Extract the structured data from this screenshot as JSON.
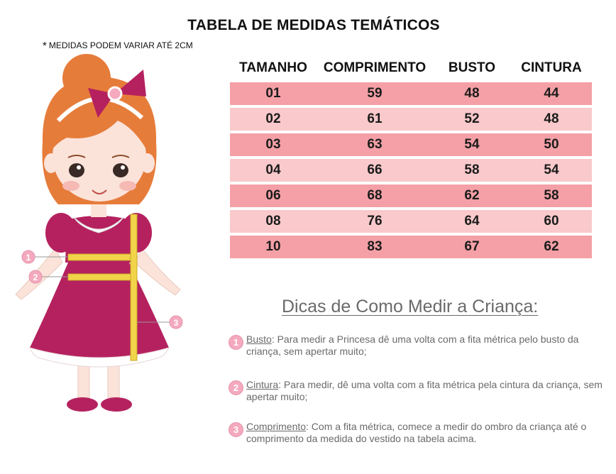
{
  "title": "TABELA DE MEDIDAS TEMÁTICOS",
  "note": {
    "star": "*",
    "text": "MEDIDAS PODEM VARIAR ATÉ 2CM"
  },
  "table": {
    "headers": [
      "TAMANHO",
      "COMPRIMENTO",
      "BUSTO",
      "CINTURA"
    ],
    "rows": [
      [
        "01",
        "59",
        "48",
        "44"
      ],
      [
        "02",
        "61",
        "52",
        "48"
      ],
      [
        "03",
        "63",
        "54",
        "50"
      ],
      [
        "04",
        "66",
        "58",
        "54"
      ],
      [
        "06",
        "68",
        "62",
        "58"
      ],
      [
        "08",
        "76",
        "64",
        "60"
      ],
      [
        "10",
        "83",
        "67",
        "62"
      ]
    ]
  },
  "illustration": {
    "markers": [
      "1",
      "2",
      "3"
    ]
  },
  "tips": {
    "heading": "Dicas de Como Medir a Criança:",
    "items": [
      {
        "number": "1",
        "term": "Busto",
        "text": ": Para medir a Princesa dê uma volta com a fita métrica pelo busto da criança, sem apertar muito;"
      },
      {
        "number": "2",
        "term": "Cintura",
        "text": ": Para medir, dê uma volta com a fita métrica pela cintura da criança, sem apertar muito;"
      },
      {
        "number": "3",
        "term": "Comprimento",
        "text": ": Com a fita métrica, comece a medir do ombro da criança até o comprimento da medida do vestido na tabela acima."
      }
    ]
  },
  "colors": {
    "row_dark": "#f4a0a6",
    "row_light": "#f9c9cb",
    "dress": "#b5215f",
    "hair": "#e67c3a",
    "tape": "#f2d44a",
    "marker": "#f4a9bf"
  }
}
